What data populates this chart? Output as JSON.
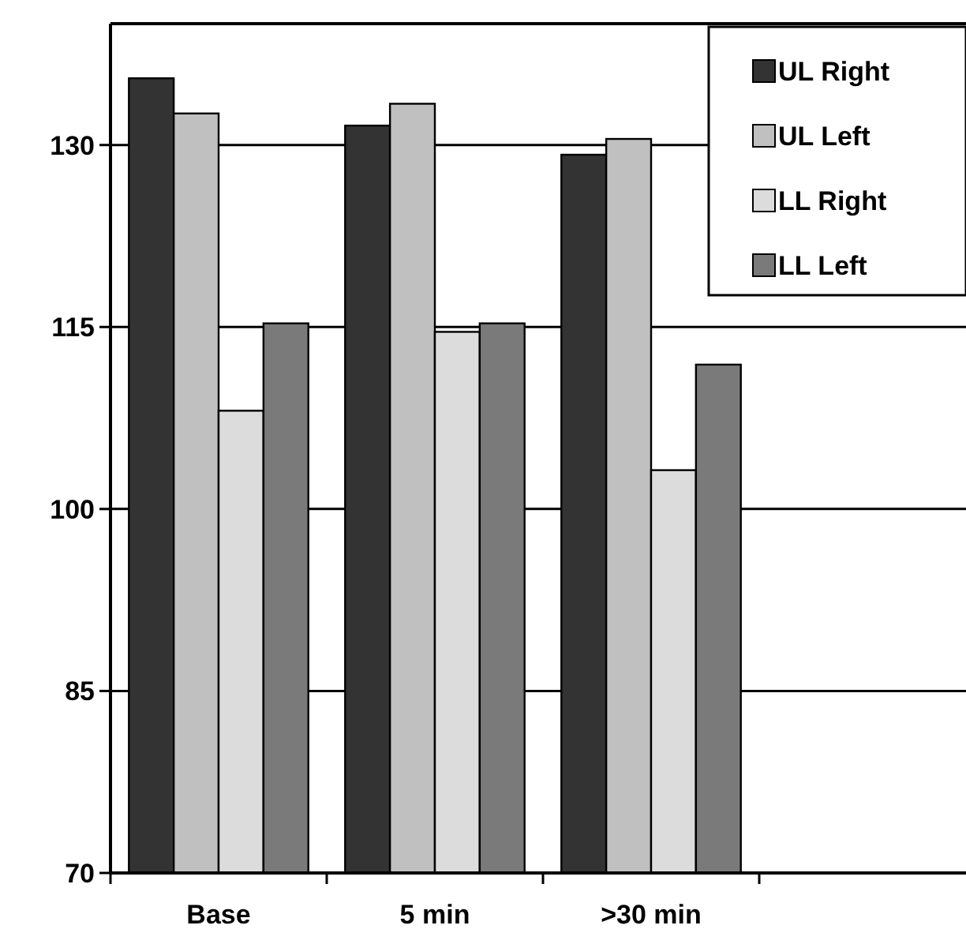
{
  "chart_data": {
    "type": "bar",
    "categories": [
      "Base",
      "5 min",
      ">30 min",
      null
    ],
    "series": [
      {
        "name": "UL Right",
        "color": "#333333",
        "values": [
          135.5,
          131.6,
          129.2,
          null
        ]
      },
      {
        "name": "UL Left",
        "color": "#c0c0c0",
        "values": [
          132.6,
          133.4,
          130.5,
          null
        ]
      },
      {
        "name": "LL Right",
        "color": "#dcdcdc",
        "values": [
          108.1,
          114.6,
          103.2,
          null
        ]
      },
      {
        "name": "LL Left",
        "color": "#7a7a7a",
        "values": [
          115.3,
          115.3,
          111.9,
          null
        ]
      }
    ],
    "ylim": [
      70,
      140
    ],
    "yticks": [
      70,
      85,
      100,
      115,
      130
    ],
    "grid": "y",
    "legend": "top right"
  }
}
